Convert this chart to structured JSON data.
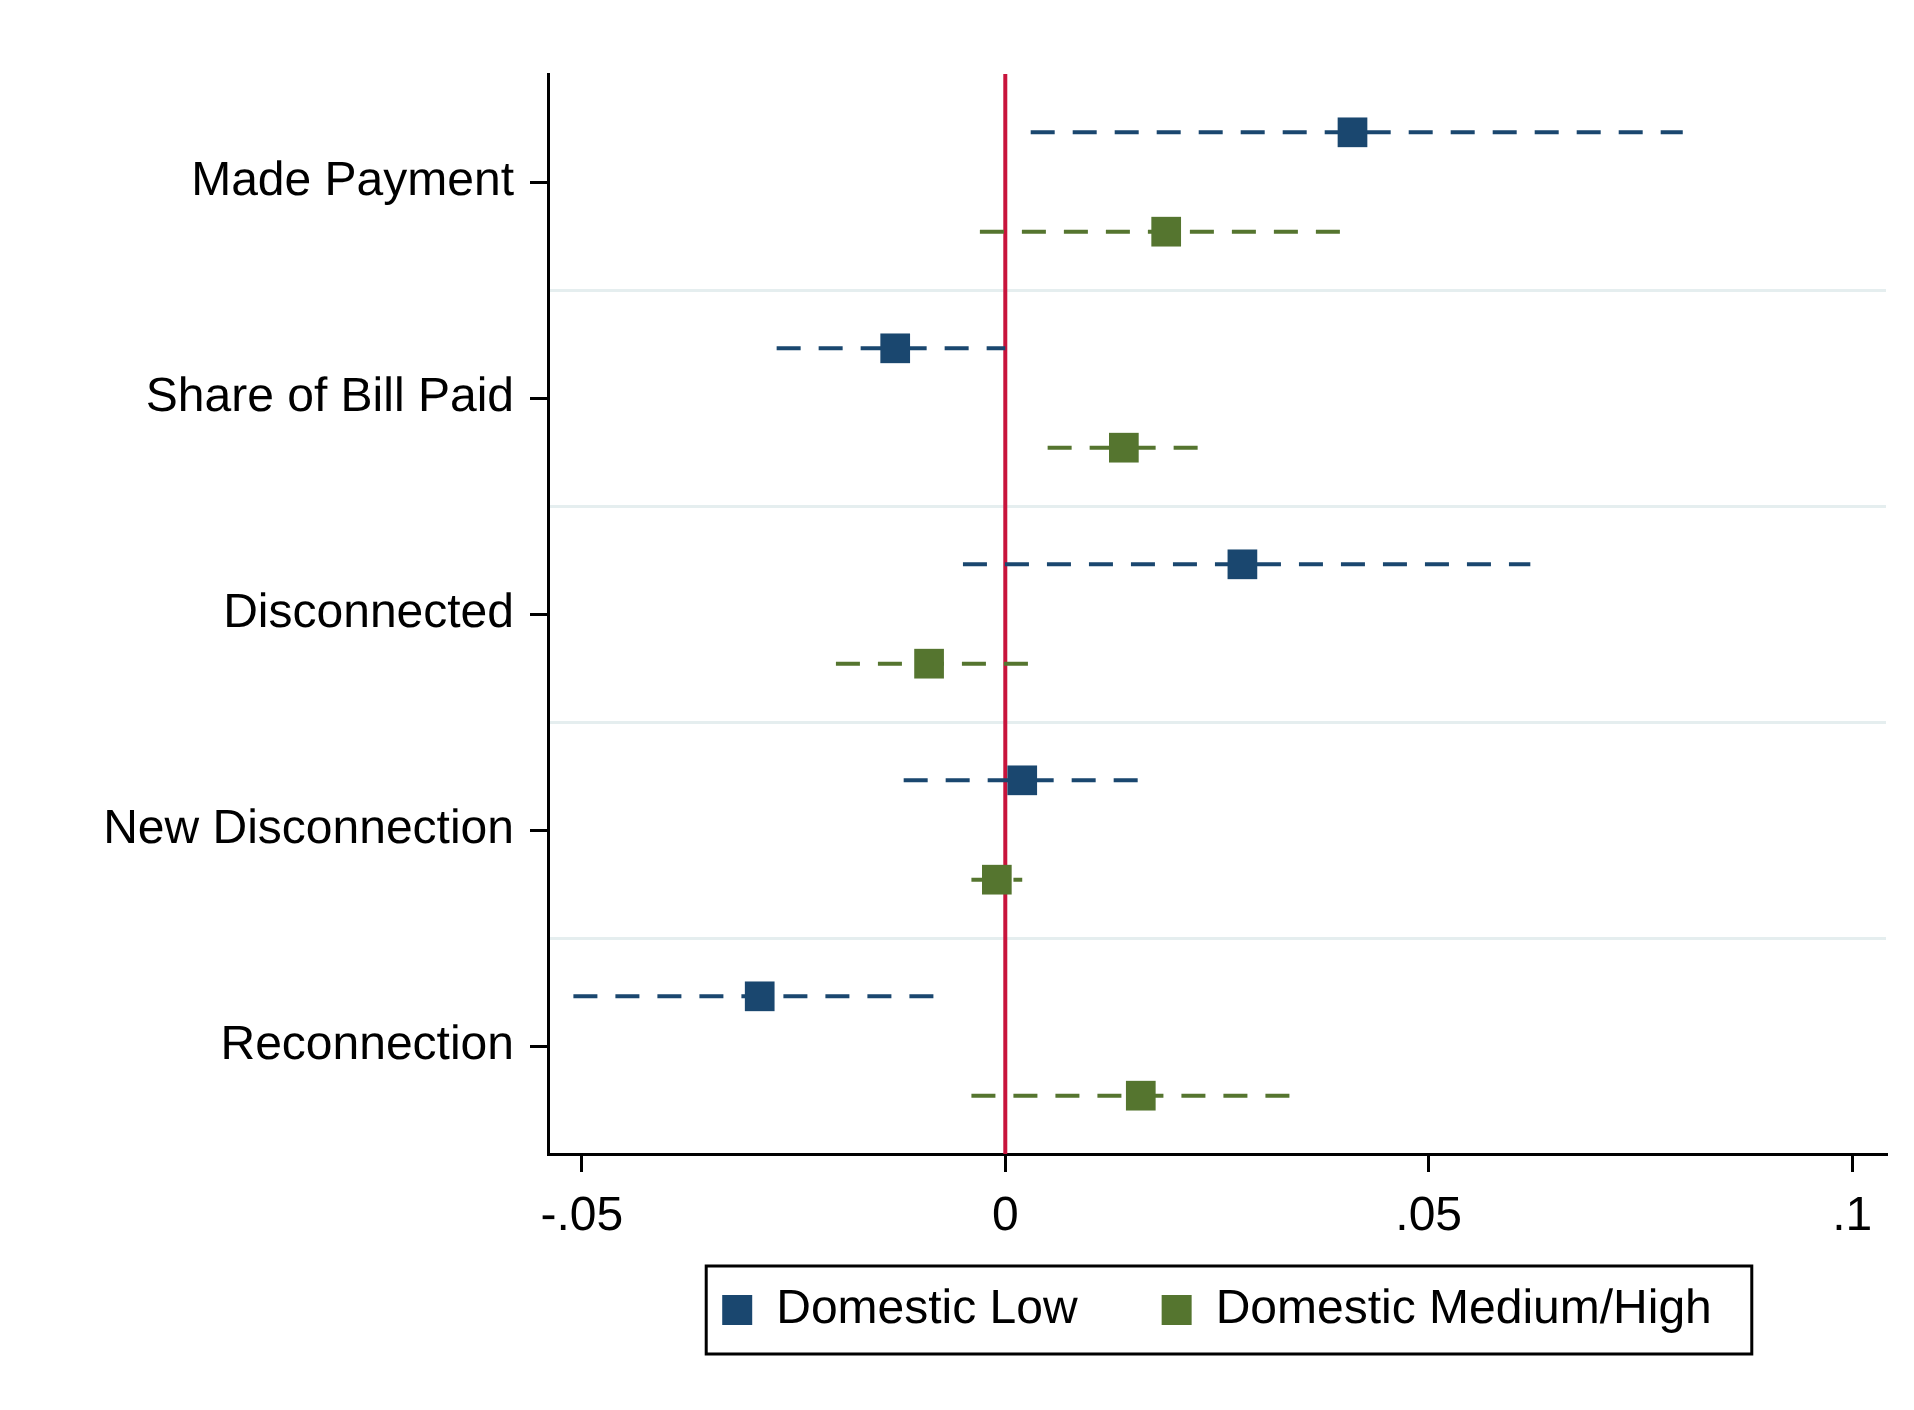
{
  "chart_data": {
    "type": "scatter",
    "orientation": "horizontal",
    "categories": [
      "Made Payment",
      "Share of Bill Paid",
      "Disconnected",
      "New Disconnection",
      "Reconnection"
    ],
    "series": [
      {
        "name": "Domestic Low",
        "color": "#1a476f",
        "values": [
          0.041,
          -0.013,
          0.028,
          0.002,
          -0.029
        ],
        "errors": [
          [
            0.003,
            0.08
          ],
          [
            -0.027,
            0.0
          ],
          [
            -0.005,
            0.062
          ],
          [
            -0.012,
            0.016
          ],
          [
            -0.051,
            -0.008
          ]
        ]
      },
      {
        "name": "Domestic Medium/High",
        "color": "#55752f",
        "values": [
          0.019,
          0.014,
          -0.009,
          -0.001,
          0.016
        ],
        "errors": [
          [
            -0.003,
            0.04
          ],
          [
            0.005,
            0.023
          ],
          [
            -0.02,
            0.003
          ],
          [
            -0.004,
            0.002
          ],
          [
            -0.004,
            0.034
          ]
        ]
      }
    ],
    "xlim": [
      -0.054,
      0.104
    ],
    "xticks": [
      {
        "value": -0.05,
        "label": "-.05"
      },
      0,
      {
        "value": 0.05,
        "label": ".05"
      },
      {
        "value": 0.1,
        "label": ".1"
      }
    ],
    "ref_lines": [
      {
        "axis": "x",
        "value": 0,
        "color": "#c8143c"
      }
    ],
    "grid": "y",
    "legend": "bottom",
    "marker": "square",
    "line_style": "dashed"
  }
}
